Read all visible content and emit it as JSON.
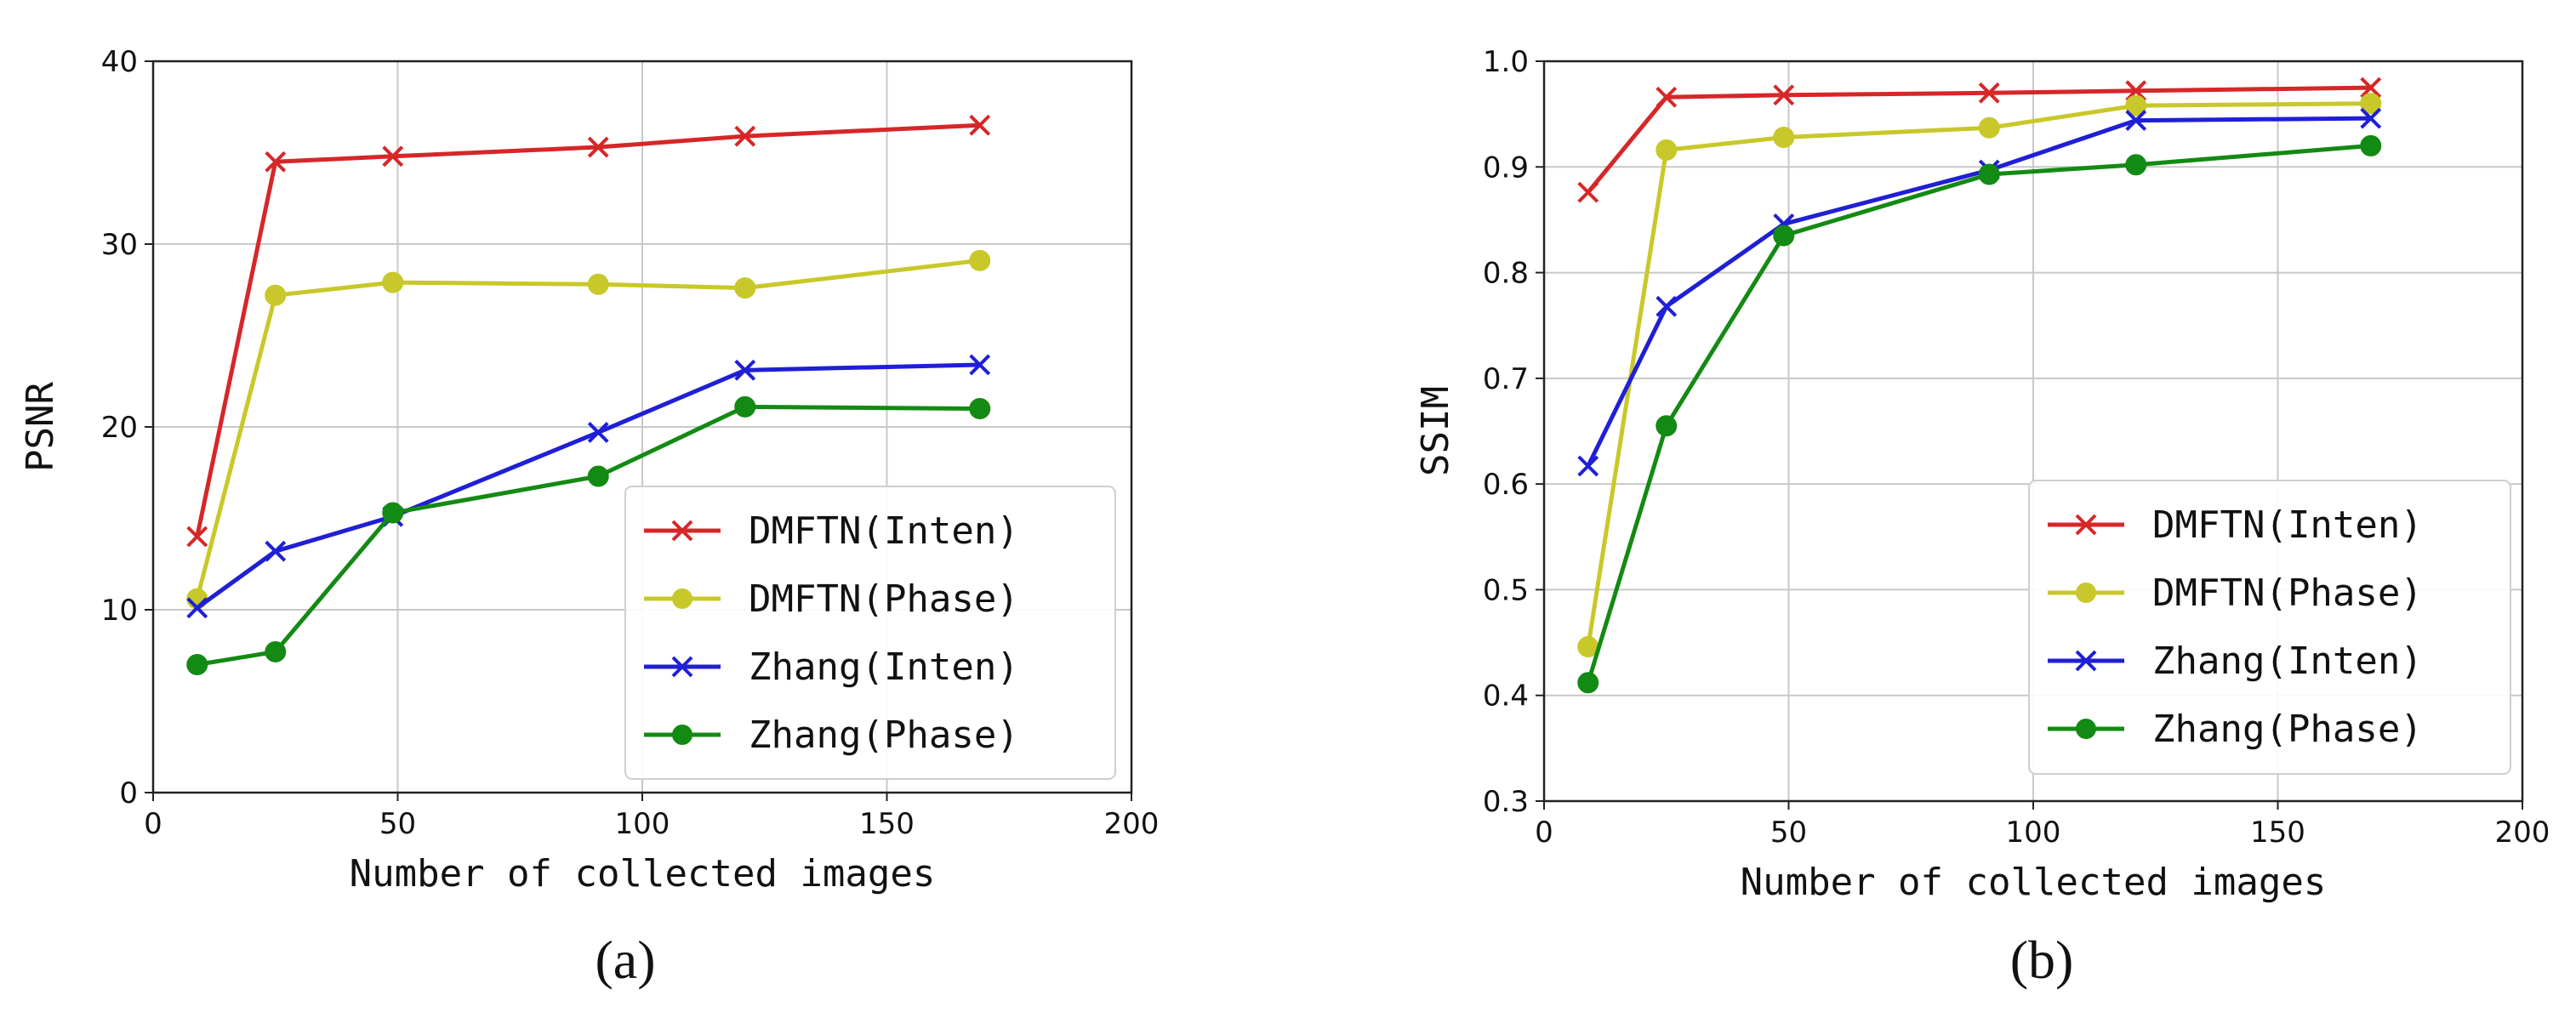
{
  "chart_data": [
    {
      "type": "line",
      "panel_label": "(a)",
      "xlabel": "Number of collected images",
      "ylabel": "PSNR",
      "xlim": [
        0,
        200
      ],
      "ylim": [
        0,
        40
      ],
      "xticks": [
        0,
        50,
        100,
        150,
        200
      ],
      "yticks": [
        0,
        10,
        20,
        30,
        40
      ],
      "grid": true,
      "legend_position": "lower-right",
      "x": [
        9,
        25,
        49,
        91,
        121,
        169
      ],
      "series": [
        {
          "name": "DMFTN(Inten)",
          "color": "#d62728",
          "marker": "x",
          "values": [
            14.0,
            34.5,
            34.8,
            35.3,
            35.9,
            36.5
          ]
        },
        {
          "name": "DMFTN(Phase)",
          "color": "#c8c82a",
          "marker": "o",
          "values": [
            10.6,
            27.2,
            27.9,
            27.8,
            27.6,
            29.1
          ]
        },
        {
          "name": "Zhang(Inten)",
          "color": "#1f1fd6",
          "marker": "x",
          "values": [
            10.1,
            13.2,
            15.1,
            19.7,
            23.1,
            23.4
          ]
        },
        {
          "name": "Zhang(Phase)",
          "color": "#138a13",
          "marker": "o",
          "values": [
            7.0,
            7.7,
            15.3,
            17.3,
            21.1,
            21.0
          ]
        }
      ]
    },
    {
      "type": "line",
      "panel_label": "(b)",
      "xlabel": "Number of collected images",
      "ylabel": "SSIM",
      "xlim": [
        0,
        200
      ],
      "ylim": [
        0.3,
        1.0
      ],
      "xticks": [
        0,
        50,
        100,
        150,
        200
      ],
      "yticks": [
        0.3,
        0.4,
        0.5,
        0.6,
        0.7,
        0.8,
        0.9,
        1.0
      ],
      "grid": true,
      "legend_position": "lower-right",
      "x": [
        9,
        25,
        49,
        91,
        121,
        169
      ],
      "series": [
        {
          "name": "DMFTN(Inten)",
          "color": "#d62728",
          "marker": "x",
          "values": [
            0.876,
            0.966,
            0.968,
            0.97,
            0.972,
            0.975
          ]
        },
        {
          "name": "DMFTN(Phase)",
          "color": "#c8c82a",
          "marker": "o",
          "values": [
            0.446,
            0.916,
            0.928,
            0.937,
            0.958,
            0.96
          ]
        },
        {
          "name": "Zhang(Inten)",
          "color": "#1f1fd6",
          "marker": "x",
          "values": [
            0.617,
            0.768,
            0.846,
            0.897,
            0.944,
            0.946
          ]
        },
        {
          "name": "Zhang(Phase)",
          "color": "#138a13",
          "marker": "o",
          "values": [
            0.412,
            0.655,
            0.835,
            0.893,
            0.902,
            0.92
          ]
        }
      ]
    }
  ]
}
